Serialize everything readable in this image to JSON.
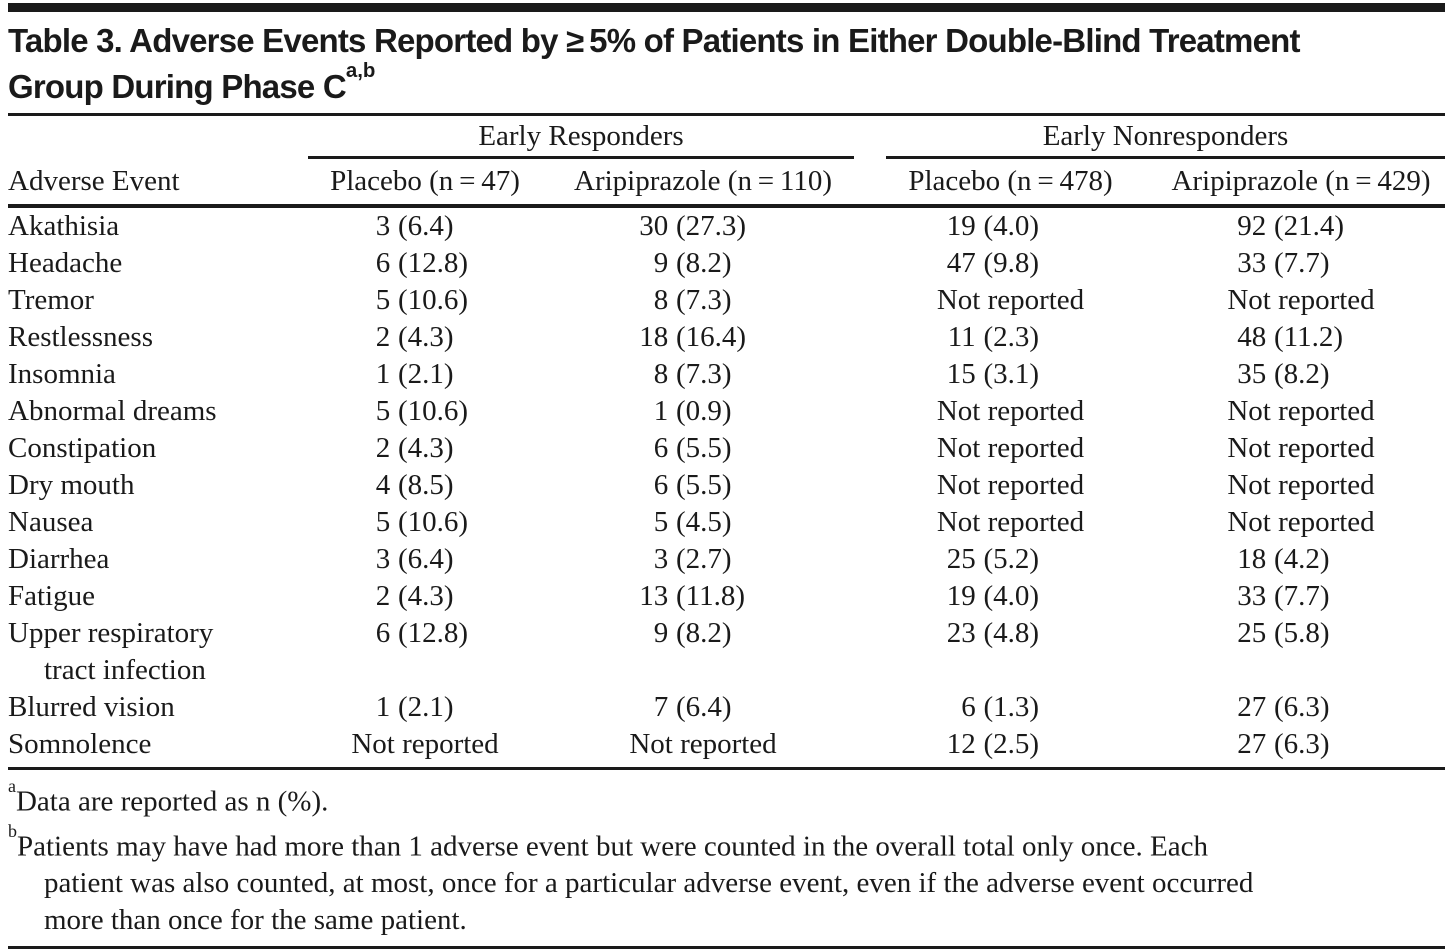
{
  "title": {
    "line1": "Table 3. Adverse Events Reported by ≥ 5% of Patients in Either Double-Blind Treatment",
    "line2": "Group During Phase C",
    "superscript": "a,b"
  },
  "table": {
    "row_header": "Adverse Event",
    "col_groups": [
      {
        "label": "Early Responders"
      },
      {
        "label": "Early Nonresponders"
      }
    ],
    "columns": [
      "Placebo (n = 47)",
      "Aripiprazole (n = 110)",
      "Placebo (n = 478)",
      "Aripiprazole (n = 429)"
    ],
    "rows": [
      {
        "label": "Akathisia",
        "values": [
          "3 (6.4)",
          "30 (27.3)",
          "19 (4.0)",
          "92 (21.4)"
        ]
      },
      {
        "label": "Headache",
        "values": [
          "6 (12.8)",
          "9 (8.2)",
          "47 (9.8)",
          "33 (7.7)"
        ]
      },
      {
        "label": "Tremor",
        "values": [
          "5 (10.6)",
          "8 (7.3)",
          "Not reported",
          "Not reported"
        ]
      },
      {
        "label": "Restlessness",
        "values": [
          "2 (4.3)",
          "18 (16.4)",
          "11 (2.3)",
          "48 (11.2)"
        ]
      },
      {
        "label": "Insomnia",
        "values": [
          "1 (2.1)",
          "8 (7.3)",
          "15 (3.1)",
          "35 (8.2)"
        ]
      },
      {
        "label": "Abnormal dreams",
        "values": [
          "5 (10.6)",
          "1 (0.9)",
          "Not reported",
          "Not reported"
        ]
      },
      {
        "label": "Constipation",
        "values": [
          "2 (4.3)",
          "6 (5.5)",
          "Not reported",
          "Not reported"
        ]
      },
      {
        "label": "Dry mouth",
        "values": [
          "4 (8.5)",
          "6 (5.5)",
          "Not reported",
          "Not reported"
        ]
      },
      {
        "label": "Nausea",
        "values": [
          "5 (10.6)",
          "5 (4.5)",
          "Not reported",
          "Not reported"
        ]
      },
      {
        "label": "Diarrhea",
        "values": [
          "3 (6.4)",
          "3 (2.7)",
          "25 (5.2)",
          "18 (4.2)"
        ]
      },
      {
        "label": "Fatigue",
        "values": [
          "2 (4.3)",
          "13 (11.8)",
          "19 (4.0)",
          "33 (7.7)"
        ]
      },
      {
        "label": "Upper respiratory",
        "label_line2": "tract infection",
        "values": [
          "6 (12.8)",
          "9 (8.2)",
          "23 (4.8)",
          "25 (5.8)"
        ]
      },
      {
        "label": "Blurred vision",
        "values": [
          "1 (2.1)",
          "7 (6.4)",
          "6 (1.3)",
          "27 (6.3)"
        ]
      },
      {
        "label": "Somnolence",
        "values": [
          "Not reported",
          "Not reported",
          "12 (2.5)",
          "27 (6.3)"
        ]
      }
    ]
  },
  "footnotes": [
    {
      "marker": "a",
      "lines": [
        "Data are reported as n (%)."
      ]
    },
    {
      "marker": "b",
      "lines": [
        "Patients may have had more than 1 adverse event but were counted in the overall total only once. Each",
        "patient was also counted, at most, once for a particular adverse event, even if the adverse event occurred",
        "more than once for the same patient."
      ]
    }
  ],
  "colors": {
    "text": "#1a1a1a",
    "rule": "#1a1a1a",
    "background": "#ffffff"
  }
}
